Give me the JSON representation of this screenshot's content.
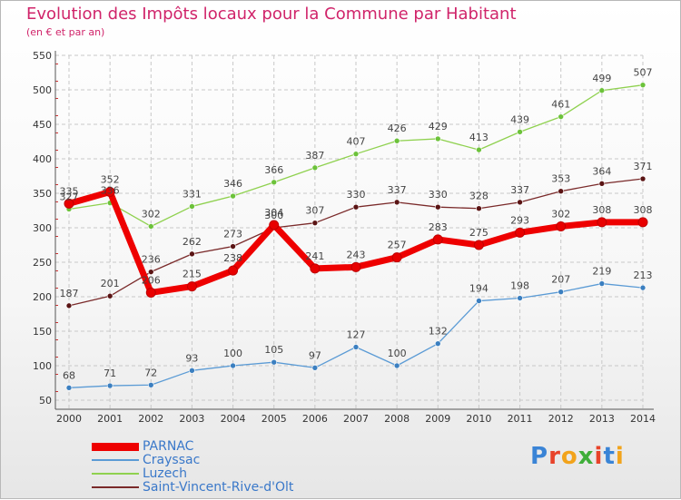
{
  "header": {
    "title": "Evolution des Impôts locaux pour la Commune par Habitant",
    "subtitle": "(en € et par an)"
  },
  "colors": {
    "title": "#d0246a",
    "legend_text": "#3a78c9",
    "grid": "#c8c8c8"
  },
  "logo": {
    "text": "Proxiti",
    "letter_colors": [
      "#3a84d6",
      "#e8432a",
      "#f2a31b",
      "#3fae3a",
      "#e8432a",
      "#3a84d6",
      "#f2a31b"
    ]
  },
  "chart_data": {
    "type": "line",
    "title": "Evolution des Impôts locaux pour la Commune par Habitant",
    "subtitle": "(en € et par an)",
    "xlabel": "",
    "ylabel": "",
    "x": [
      2000,
      2001,
      2002,
      2003,
      2004,
      2005,
      2006,
      2007,
      2008,
      2009,
      2010,
      2011,
      2012,
      2013,
      2014
    ],
    "ylim": [
      50,
      550
    ],
    "yticks": [
      50,
      100,
      150,
      200,
      250,
      300,
      350,
      400,
      450,
      500,
      550
    ],
    "grid": true,
    "legend_position": "bottom-left",
    "series": [
      {
        "name": "Luzech",
        "color": "#8fd14f",
        "marker_color": "#6cc23a",
        "width": 1.3,
        "values": [
          327,
          336,
          302,
          331,
          346,
          366,
          387,
          407,
          426,
          429,
          413,
          439,
          461,
          499,
          507
        ]
      },
      {
        "name": "Saint-Vincent-Rive-d'Olt",
        "color": "#7a2a2a",
        "marker_color": "#5a1414",
        "width": 1.3,
        "values": [
          187,
          201,
          236,
          262,
          273,
          300,
          307,
          330,
          337,
          330,
          328,
          337,
          353,
          364,
          371
        ]
      },
      {
        "name": "Crayssac",
        "color": "#5b9bd5",
        "marker_color": "#3b7fc0",
        "width": 1.3,
        "values": [
          68,
          71,
          72,
          93,
          100,
          105,
          97,
          127,
          100,
          132,
          194,
          198,
          207,
          219,
          213
        ]
      },
      {
        "name": "PARNAC",
        "color": "#ee0000",
        "marker_color": "#e80000",
        "width": 7,
        "values": [
          335,
          352,
          206,
          215,
          238,
          304,
          241,
          243,
          257,
          283,
          275,
          293,
          302,
          308,
          308
        ]
      }
    ],
    "legend_order": [
      "PARNAC",
      "Crayssac",
      "Luzech",
      "Saint-Vincent-Rive-d'Olt"
    ]
  }
}
